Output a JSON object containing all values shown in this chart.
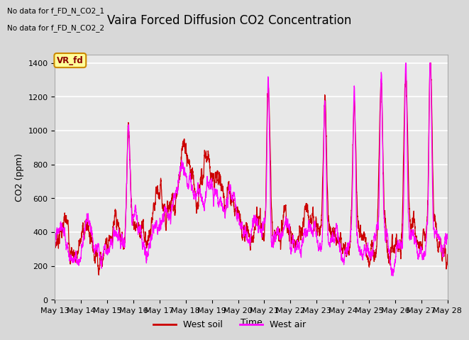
{
  "title": "Vaira Forced Diffusion CO2 Concentration",
  "xlabel": "Time",
  "ylabel": "CO2 (ppm)",
  "ylim": [
    0,
    1450
  ],
  "yticks": [
    0,
    200,
    400,
    600,
    800,
    1000,
    1200,
    1400
  ],
  "date_labels": [
    "May 13",
    "May 14",
    "May 15",
    "May 16",
    "May 17",
    "May 18",
    "May 19",
    "May 20",
    "May 21",
    "May 22",
    "May 23",
    "May 24",
    "May 25",
    "May 26",
    "May 27",
    "May 28"
  ],
  "no_data_text1": "No data for f_FD_N_CO2_1",
  "no_data_text2": "No data for f_FD_N_CO2_2",
  "legend_label1": "VR_fd",
  "legend_label2": "West soil",
  "legend_label3": "West air",
  "soil_color": "#cc0000",
  "air_color": "#ff00ff",
  "bg_color": "#d8d8d8",
  "plot_bg": "#e8e8e8",
  "title_fontsize": 12,
  "axis_fontsize": 9,
  "tick_fontsize": 8,
  "n_points": 3840
}
